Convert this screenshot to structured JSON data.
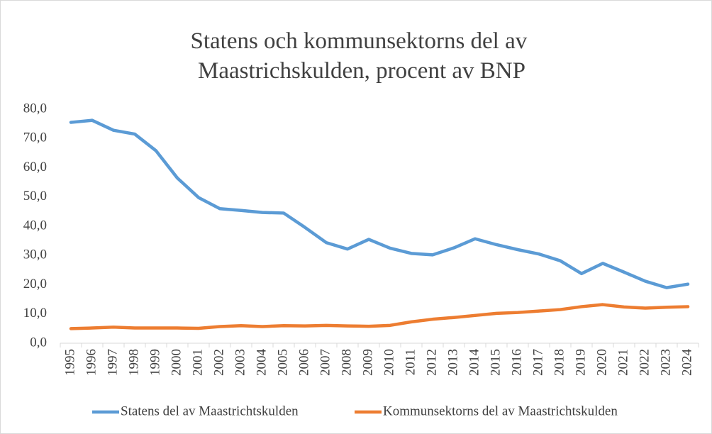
{
  "chart_data": {
    "type": "line",
    "title": [
      "Statens och kommunsektorns del av",
      "Maastrichskulden, procent av BNP"
    ],
    "categories": [
      "1995",
      "1996",
      "1997",
      "1998",
      "1999",
      "2000",
      "2001",
      "2002",
      "2003",
      "2004",
      "2005",
      "2006",
      "2007",
      "2008",
      "2009",
      "2010",
      "2011",
      "2012",
      "2013",
      "2014",
      "2015",
      "2016",
      "2017",
      "2018",
      "2019",
      "2020",
      "2021",
      "2022",
      "2023",
      "2024"
    ],
    "series": [
      {
        "name": "Statens del av Maastrichtskulden",
        "color": "#5b9bd5",
        "values": [
          75.5,
          76.2,
          72.8,
          71.5,
          65.8,
          56.5,
          49.8,
          46.0,
          45.4,
          44.7,
          44.5,
          39.6,
          34.4,
          32.2,
          35.5,
          32.5,
          30.7,
          30.2,
          32.6,
          35.7,
          33.7,
          32.0,
          30.5,
          28.2,
          23.8,
          27.3,
          24.3,
          21.2,
          19.0,
          20.2
        ]
      },
      {
        "name": "Kommunsektorns del av Maastrichtskulden",
        "color": "#ed7d31",
        "values": [
          5.0,
          5.2,
          5.5,
          5.2,
          5.2,
          5.2,
          5.1,
          5.7,
          6.0,
          5.7,
          6.0,
          5.9,
          6.1,
          5.9,
          5.8,
          6.1,
          7.3,
          8.2,
          8.8,
          9.5,
          10.2,
          10.5,
          11.0,
          11.5,
          12.5,
          13.2,
          12.4,
          12.0,
          12.3,
          12.5
        ]
      }
    ],
    "ylim": [
      0,
      80
    ],
    "yticks": [
      {
        "value": 0,
        "label": "0,0"
      },
      {
        "value": 10,
        "label": "10,0"
      },
      {
        "value": 20,
        "label": "20,0"
      },
      {
        "value": 30,
        "label": "30,0"
      },
      {
        "value": 40,
        "label": "40,0"
      },
      {
        "value": 50,
        "label": "50,0"
      },
      {
        "value": 60,
        "label": "60,0"
      },
      {
        "value": 70,
        "label": "70,0"
      },
      {
        "value": 80,
        "label": "80,0"
      }
    ],
    "legend": "bottom"
  }
}
